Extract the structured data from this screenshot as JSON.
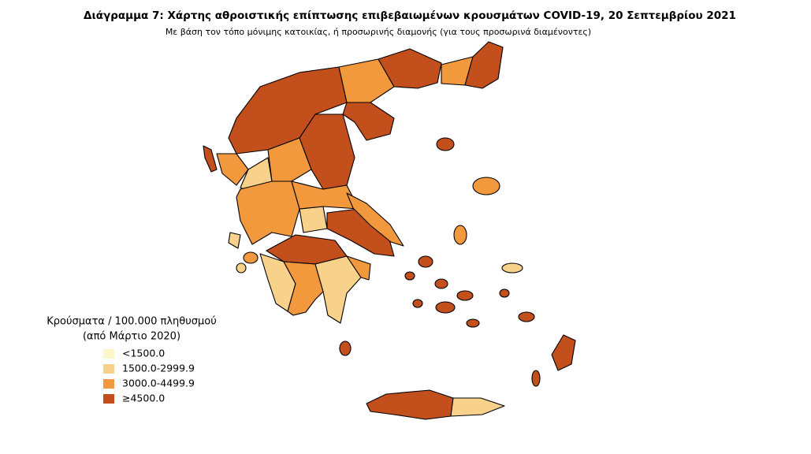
{
  "title": "Διάγραμμα 7: Χάρτης αθροιστικής επίπτωσης επιβεβαιωμένων κρουσμάτων COVID-19, 20 Σεπτεμβρίου 2021",
  "subtitle": "Με βάση τον τόπο μόνιμης κατοικίας, ή προσωρινής διαμονής (για τους προσωρινά διαμένοντες)",
  "legend": {
    "title": [
      "Κρούσματα / 100.000 πληθυσμού",
      "(από Μάρτιο 2020)"
    ],
    "items": [
      {
        "label": "<1500.0",
        "color": "#fdf6c9"
      },
      {
        "label": "1500.0-2999.9",
        "color": "#f8d18b"
      },
      {
        "label": "3000.0-4499.9",
        "color": "#f2983d"
      },
      {
        "label": "≥4500.0",
        "color": "#c24f1c"
      }
    ]
  }
}
